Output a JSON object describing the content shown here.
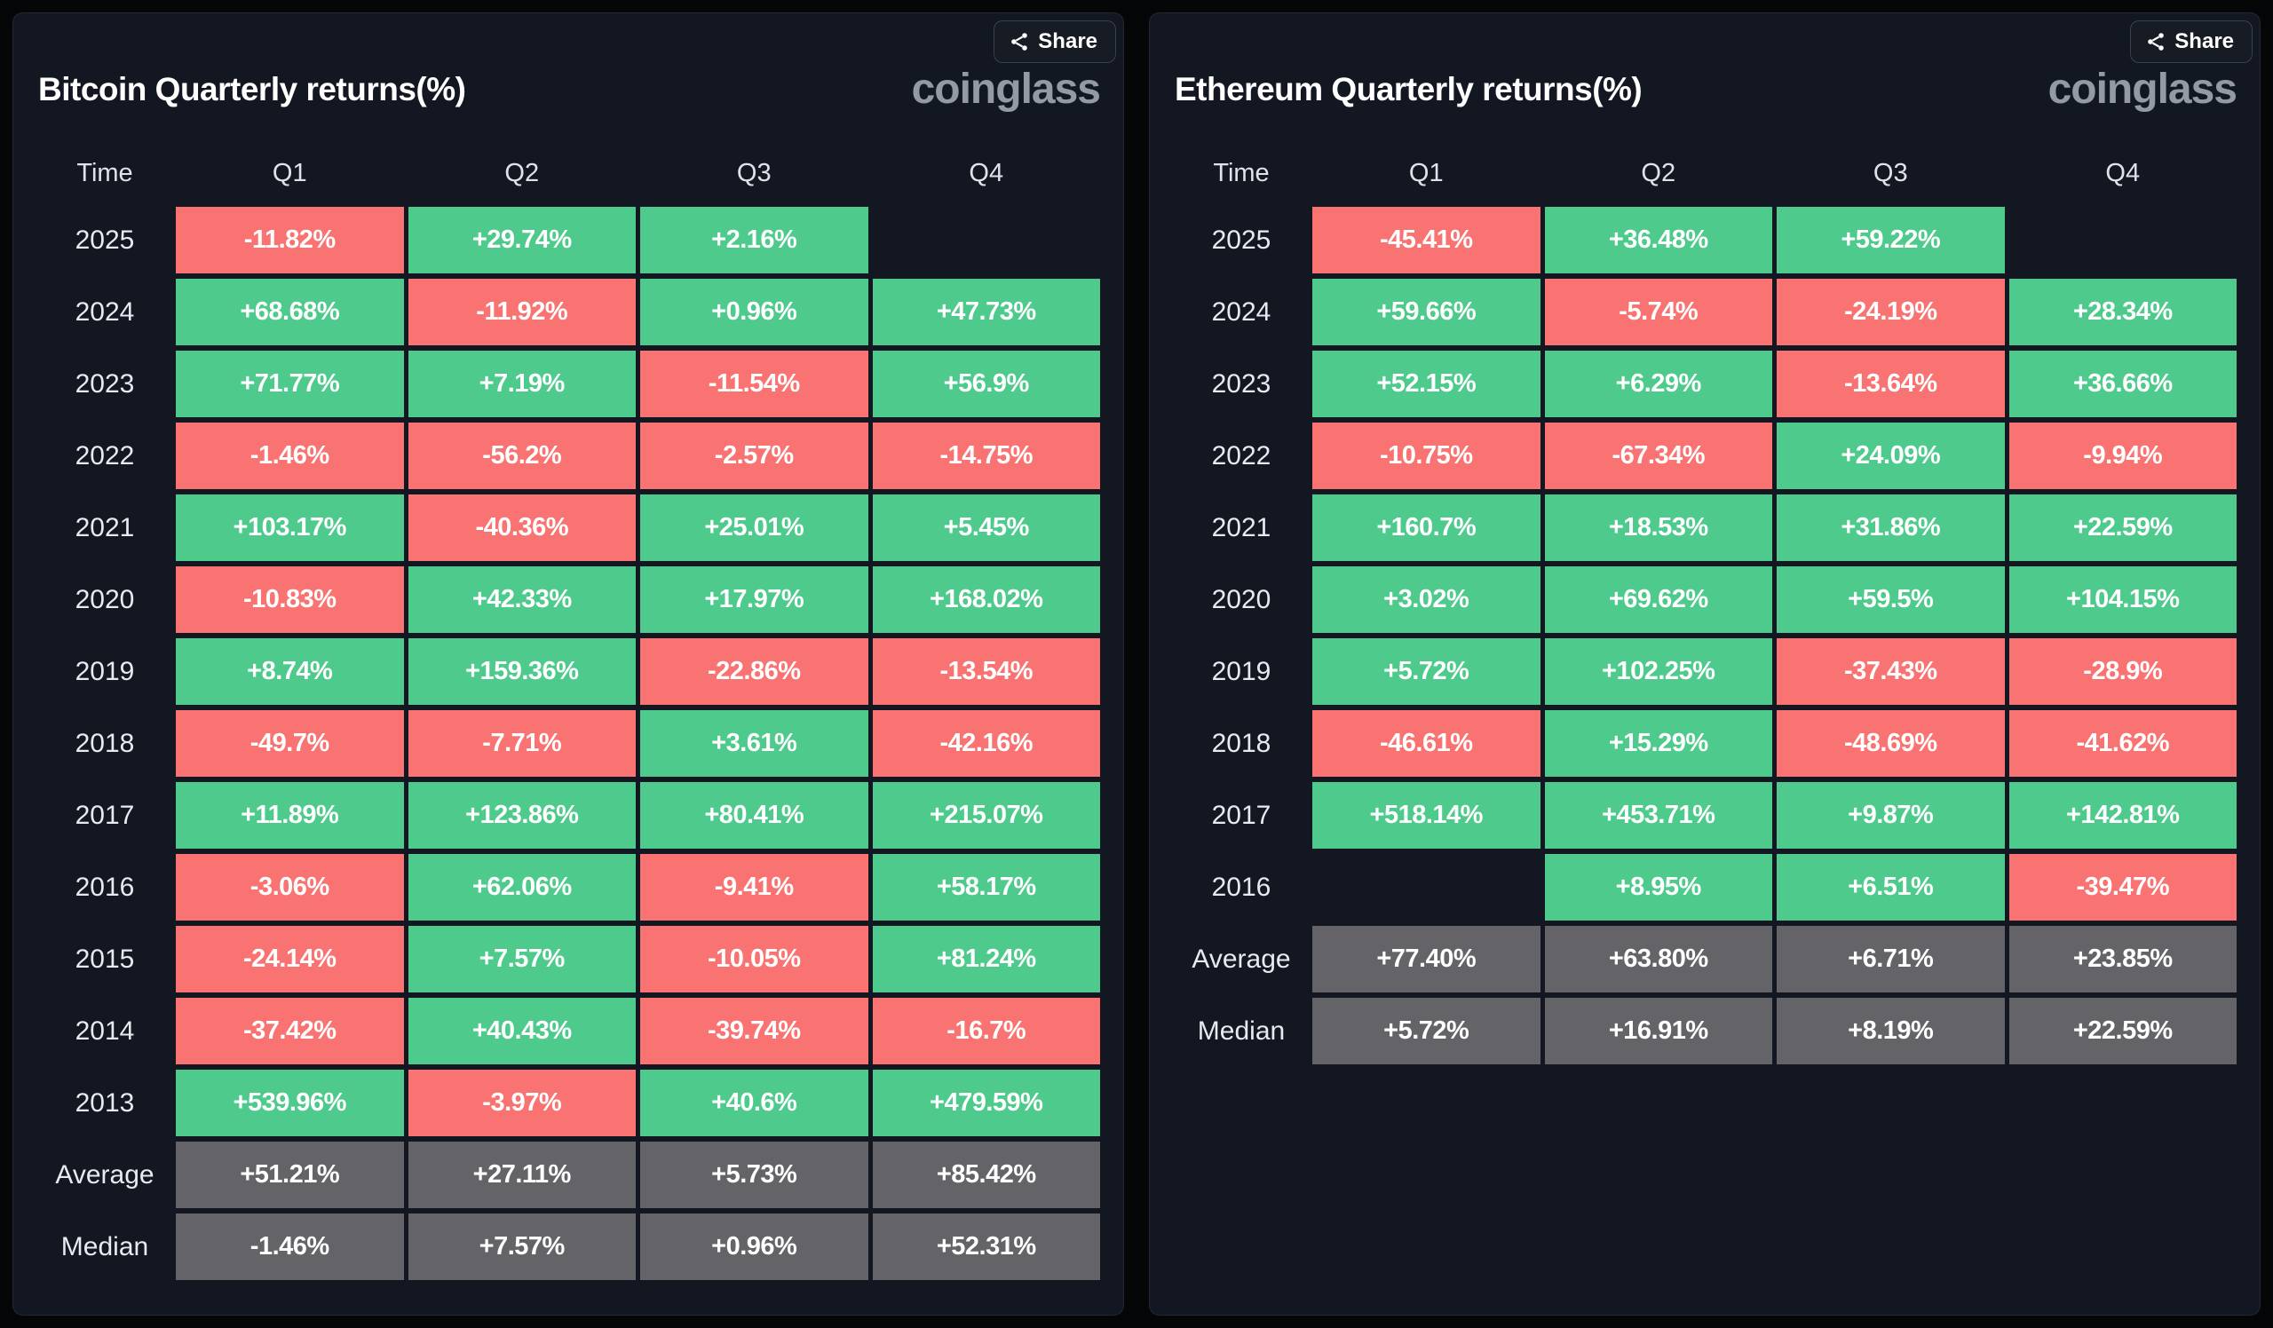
{
  "colors": {
    "positive": "#4ecb8c",
    "negative": "#fa7373",
    "summary": "#646468",
    "card_bg": "#131722",
    "page_bg": "#050608"
  },
  "cards": [
    {
      "title": "Bitcoin Quarterly returns(%)",
      "brand": "coinglass",
      "share_label": "Share",
      "columns": [
        "Time",
        "Q1",
        "Q2",
        "Q3",
        "Q4"
      ],
      "rows": [
        {
          "label": "2025",
          "type": "data",
          "values": [
            "-11.82%",
            "+29.74%",
            "+2.16%",
            null
          ]
        },
        {
          "label": "2024",
          "type": "data",
          "values": [
            "+68.68%",
            "-11.92%",
            "+0.96%",
            "+47.73%"
          ]
        },
        {
          "label": "2023",
          "type": "data",
          "values": [
            "+71.77%",
            "+7.19%",
            "-11.54%",
            "+56.9%"
          ]
        },
        {
          "label": "2022",
          "type": "data",
          "values": [
            "-1.46%",
            "-56.2%",
            "-2.57%",
            "-14.75%"
          ]
        },
        {
          "label": "2021",
          "type": "data",
          "values": [
            "+103.17%",
            "-40.36%",
            "+25.01%",
            "+5.45%"
          ]
        },
        {
          "label": "2020",
          "type": "data",
          "values": [
            "-10.83%",
            "+42.33%",
            "+17.97%",
            "+168.02%"
          ]
        },
        {
          "label": "2019",
          "type": "data",
          "values": [
            "+8.74%",
            "+159.36%",
            "-22.86%",
            "-13.54%"
          ]
        },
        {
          "label": "2018",
          "type": "data",
          "values": [
            "-49.7%",
            "-7.71%",
            "+3.61%",
            "-42.16%"
          ]
        },
        {
          "label": "2017",
          "type": "data",
          "values": [
            "+11.89%",
            "+123.86%",
            "+80.41%",
            "+215.07%"
          ]
        },
        {
          "label": "2016",
          "type": "data",
          "values": [
            "-3.06%",
            "+62.06%",
            "-9.41%",
            "+58.17%"
          ]
        },
        {
          "label": "2015",
          "type": "data",
          "values": [
            "-24.14%",
            "+7.57%",
            "-10.05%",
            "+81.24%"
          ]
        },
        {
          "label": "2014",
          "type": "data",
          "values": [
            "-37.42%",
            "+40.43%",
            "-39.74%",
            "-16.7%"
          ]
        },
        {
          "label": "2013",
          "type": "data",
          "values": [
            "+539.96%",
            "-3.97%",
            "+40.6%",
            "+479.59%"
          ]
        },
        {
          "label": "Average",
          "type": "summary",
          "values": [
            "+51.21%",
            "+27.11%",
            "+5.73%",
            "+85.42%"
          ]
        },
        {
          "label": "Median",
          "type": "summary",
          "values": [
            "-1.46%",
            "+7.57%",
            "+0.96%",
            "+52.31%"
          ]
        }
      ]
    },
    {
      "title": "Ethereum Quarterly returns(%)",
      "brand": "coinglass",
      "share_label": "Share",
      "columns": [
        "Time",
        "Q1",
        "Q2",
        "Q3",
        "Q4"
      ],
      "rows": [
        {
          "label": "2025",
          "type": "data",
          "values": [
            "-45.41%",
            "+36.48%",
            "+59.22%",
            null
          ]
        },
        {
          "label": "2024",
          "type": "data",
          "values": [
            "+59.66%",
            "-5.74%",
            "-24.19%",
            "+28.34%"
          ]
        },
        {
          "label": "2023",
          "type": "data",
          "values": [
            "+52.15%",
            "+6.29%",
            "-13.64%",
            "+36.66%"
          ]
        },
        {
          "label": "2022",
          "type": "data",
          "values": [
            "-10.75%",
            "-67.34%",
            "+24.09%",
            "-9.94%"
          ]
        },
        {
          "label": "2021",
          "type": "data",
          "values": [
            "+160.7%",
            "+18.53%",
            "+31.86%",
            "+22.59%"
          ]
        },
        {
          "label": "2020",
          "type": "data",
          "values": [
            "+3.02%",
            "+69.62%",
            "+59.5%",
            "+104.15%"
          ]
        },
        {
          "label": "2019",
          "type": "data",
          "values": [
            "+5.72%",
            "+102.25%",
            "-37.43%",
            "-28.9%"
          ]
        },
        {
          "label": "2018",
          "type": "data",
          "values": [
            "-46.61%",
            "+15.29%",
            "-48.69%",
            "-41.62%"
          ]
        },
        {
          "label": "2017",
          "type": "data",
          "values": [
            "+518.14%",
            "+453.71%",
            "+9.87%",
            "+142.81%"
          ]
        },
        {
          "label": "2016",
          "type": "data",
          "values": [
            null,
            "+8.95%",
            "+6.51%",
            "-39.47%"
          ]
        },
        {
          "label": "Average",
          "type": "summary",
          "values": [
            "+77.40%",
            "+63.80%",
            "+6.71%",
            "+23.85%"
          ]
        },
        {
          "label": "Median",
          "type": "summary",
          "values": [
            "+5.72%",
            "+16.91%",
            "+8.19%",
            "+22.59%"
          ]
        }
      ]
    }
  ],
  "chart_data": [
    {
      "type": "heatmap",
      "title": "Bitcoin Quarterly returns(%)",
      "columns": [
        "Q1",
        "Q2",
        "Q3",
        "Q4"
      ],
      "unit": "percent",
      "rows": [
        {
          "label": "2025",
          "values": [
            -11.82,
            29.74,
            2.16,
            null
          ]
        },
        {
          "label": "2024",
          "values": [
            68.68,
            -11.92,
            0.96,
            47.73
          ]
        },
        {
          "label": "2023",
          "values": [
            71.77,
            7.19,
            -11.54,
            56.9
          ]
        },
        {
          "label": "2022",
          "values": [
            -1.46,
            -56.2,
            -2.57,
            -14.75
          ]
        },
        {
          "label": "2021",
          "values": [
            103.17,
            -40.36,
            25.01,
            5.45
          ]
        },
        {
          "label": "2020",
          "values": [
            -10.83,
            42.33,
            17.97,
            168.02
          ]
        },
        {
          "label": "2019",
          "values": [
            8.74,
            159.36,
            -22.86,
            -13.54
          ]
        },
        {
          "label": "2018",
          "values": [
            -49.7,
            -7.71,
            3.61,
            -42.16
          ]
        },
        {
          "label": "2017",
          "values": [
            11.89,
            123.86,
            80.41,
            215.07
          ]
        },
        {
          "label": "2016",
          "values": [
            -3.06,
            62.06,
            -9.41,
            58.17
          ]
        },
        {
          "label": "2015",
          "values": [
            -24.14,
            7.57,
            -10.05,
            81.24
          ]
        },
        {
          "label": "2014",
          "values": [
            -37.42,
            40.43,
            -39.74,
            -16.7
          ]
        },
        {
          "label": "2013",
          "values": [
            539.96,
            -3.97,
            40.6,
            479.59
          ]
        },
        {
          "label": "Average",
          "values": [
            51.21,
            27.11,
            5.73,
            85.42
          ]
        },
        {
          "label": "Median",
          "values": [
            -1.46,
            7.57,
            0.96,
            52.31
          ]
        }
      ]
    },
    {
      "type": "heatmap",
      "title": "Ethereum Quarterly returns(%)",
      "columns": [
        "Q1",
        "Q2",
        "Q3",
        "Q4"
      ],
      "unit": "percent",
      "rows": [
        {
          "label": "2025",
          "values": [
            -45.41,
            36.48,
            59.22,
            null
          ]
        },
        {
          "label": "2024",
          "values": [
            59.66,
            -5.74,
            -24.19,
            28.34
          ]
        },
        {
          "label": "2023",
          "values": [
            52.15,
            6.29,
            -13.64,
            36.66
          ]
        },
        {
          "label": "2022",
          "values": [
            -10.75,
            -67.34,
            24.09,
            -9.94
          ]
        },
        {
          "label": "2021",
          "values": [
            160.7,
            18.53,
            31.86,
            22.59
          ]
        },
        {
          "label": "2020",
          "values": [
            3.02,
            69.62,
            59.5,
            104.15
          ]
        },
        {
          "label": "2019",
          "values": [
            5.72,
            102.25,
            -37.43,
            -28.9
          ]
        },
        {
          "label": "2018",
          "values": [
            -46.61,
            15.29,
            -48.69,
            -41.62
          ]
        },
        {
          "label": "2017",
          "values": [
            518.14,
            453.71,
            9.87,
            142.81
          ]
        },
        {
          "label": "2016",
          "values": [
            null,
            8.95,
            6.51,
            -39.47
          ]
        },
        {
          "label": "Average",
          "values": [
            77.4,
            63.8,
            6.71,
            23.85
          ]
        },
        {
          "label": "Median",
          "values": [
            5.72,
            16.91,
            8.19,
            22.59
          ]
        }
      ]
    }
  ]
}
